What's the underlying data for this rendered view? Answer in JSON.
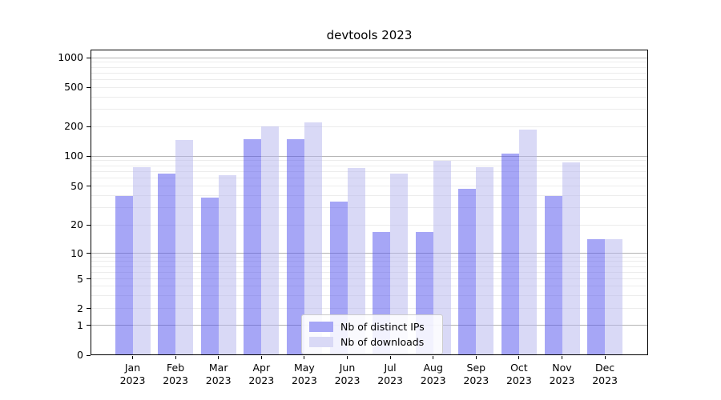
{
  "chart_data": {
    "type": "bar",
    "title": "devtools 2023",
    "categories": [
      "Jan 2023",
      "Feb 2023",
      "Mar 2023",
      "Apr 2023",
      "May 2023",
      "Jun 2023",
      "Jul 2023",
      "Aug 2023",
      "Sep 2023",
      "Oct 2023",
      "Nov 2023",
      "Dec 2023"
    ],
    "series": [
      {
        "name": "Nb of distinct IPs",
        "color": "#a6a6f6",
        "fill": "rgba(77,77,237,0.5)",
        "values": [
          40,
          67,
          38,
          148,
          148,
          35,
          17,
          17,
          47,
          107,
          40,
          14
        ]
      },
      {
        "name": "Nb of downloads",
        "color": "#d9d9f6",
        "fill": "rgba(179,179,237,0.5)",
        "values": [
          77,
          146,
          65,
          200,
          220,
          76,
          67,
          90,
          78,
          188,
          87,
          14
        ]
      }
    ],
    "yscale": "log-like-with-zero",
    "yticks": [
      0,
      1,
      2,
      5,
      10,
      20,
      50,
      100,
      200,
      500,
      1000
    ],
    "ylim": [
      0,
      1200
    ],
    "grid": true,
    "legend_position": "lower center",
    "colors": {
      "grid_major": "#b4b4b4",
      "grid_minor": "#ececec",
      "axis": "#000000",
      "background": "#ffffff"
    }
  }
}
